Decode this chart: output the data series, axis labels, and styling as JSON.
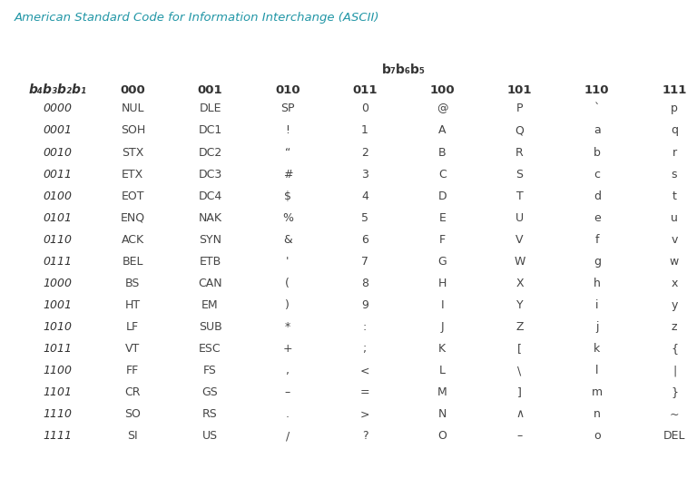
{
  "title": "American Standard Code for Information Interchange (ASCII)",
  "title_color": "#2196A6",
  "col_header_label": "b₇b₆b₅",
  "col_headers": [
    "000",
    "001",
    "010",
    "011",
    "100",
    "101",
    "110",
    "111"
  ],
  "row_header_label": "b₄b₃b₂b₁",
  "row_headers": [
    "0000",
    "0001",
    "0010",
    "0011",
    "0100",
    "0101",
    "0110",
    "0111",
    "1000",
    "1001",
    "1010",
    "1011",
    "1100",
    "1101",
    "1110",
    "1111"
  ],
  "table_data": [
    [
      "NUL",
      "DLE",
      "SP",
      "0",
      "@",
      "P",
      "`",
      "p"
    ],
    [
      "SOH",
      "DC1",
      "!",
      "1",
      "A",
      "Q",
      "a",
      "q"
    ],
    [
      "STX",
      "DC2",
      "“",
      "2",
      "B",
      "R",
      "b",
      "r"
    ],
    [
      "ETX",
      "DC3",
      "#",
      "3",
      "C",
      "S",
      "c",
      "s"
    ],
    [
      "EOT",
      "DC4",
      "$",
      "4",
      "D",
      "T",
      "d",
      "t"
    ],
    [
      "ENQ",
      "NAK",
      "%",
      "5",
      "E",
      "U",
      "e",
      "u"
    ],
    [
      "ACK",
      "SYN",
      "&",
      "6",
      "F",
      "V",
      "f",
      "v"
    ],
    [
      "BEL",
      "ETB",
      "'",
      "7",
      "G",
      "W",
      "g",
      "w"
    ],
    [
      "BS",
      "CAN",
      "(",
      "8",
      "H",
      "X",
      "h",
      "x"
    ],
    [
      "HT",
      "EM",
      ")",
      "9",
      "I",
      "Y",
      "i",
      "y"
    ],
    [
      "LF",
      "SUB",
      "*",
      ":",
      "J",
      "Z",
      "j",
      "z"
    ],
    [
      "VT",
      "ESC",
      "+",
      ";",
      "K",
      "[",
      "k",
      "{"
    ],
    [
      "FF",
      "FS",
      ",",
      "<",
      "L",
      "\\",
      "l",
      "|"
    ],
    [
      "CR",
      "GS",
      "–",
      "=",
      "M",
      "]",
      "m",
      "}"
    ],
    [
      "SO",
      "RS",
      ".",
      ">",
      "N",
      "∧",
      "n",
      "~"
    ],
    [
      "SI",
      "US",
      "/",
      "?",
      "O",
      "–",
      "o",
      "DEL"
    ]
  ],
  "bg_color": "#ffffff",
  "header_text_color": "#333333",
  "data_text_color": "#444444",
  "line_color": "#888888",
  "teal_line_color": "#2196A6"
}
